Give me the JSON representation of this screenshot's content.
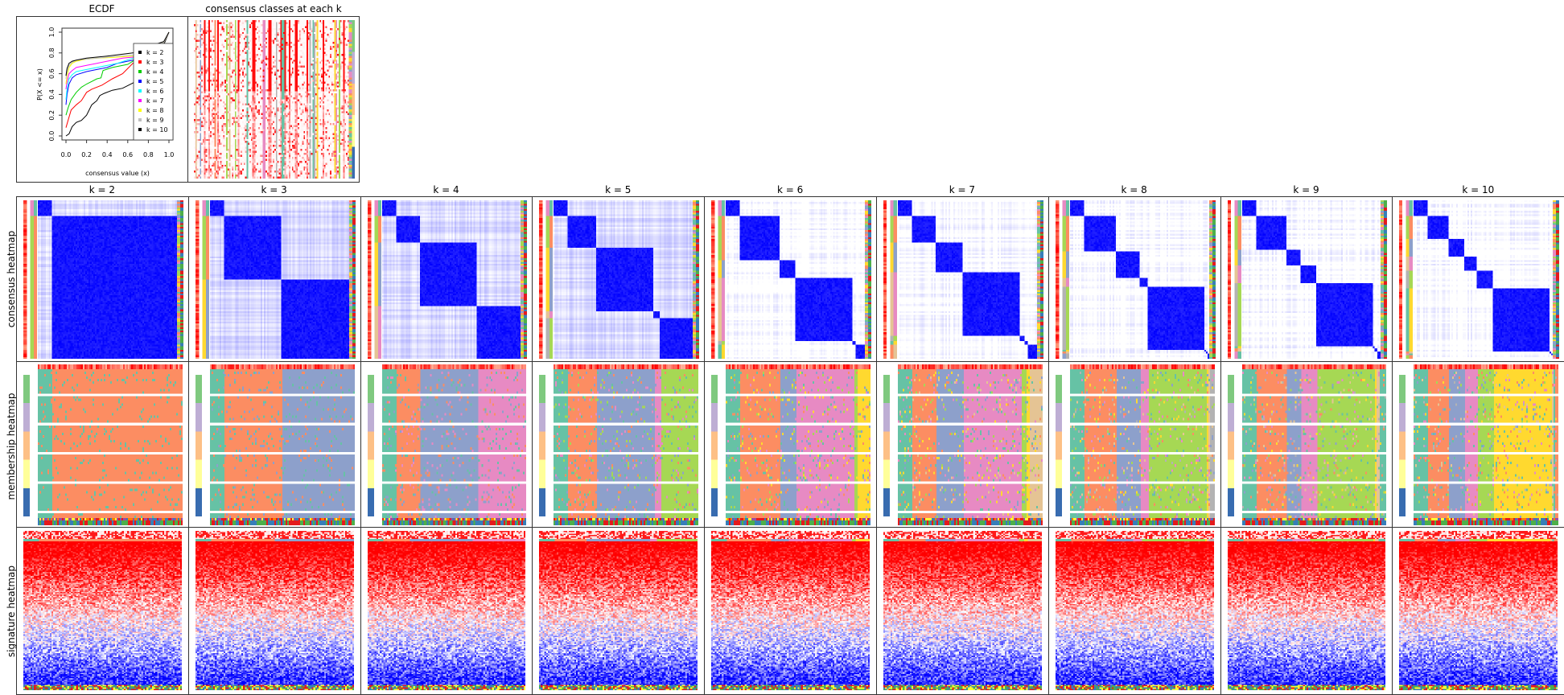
{
  "ecdf_panel": {
    "title": "ECDF"
  },
  "classes_panel": {
    "title": "consensus classes at each k"
  },
  "row_labels": [
    "consensus heatmap",
    "membership heatmap",
    "signature heatmap"
  ],
  "k_titles": [
    "k = 2",
    "k = 3",
    "k = 4",
    "k = 5",
    "k = 6",
    "k = 7",
    "k = 8",
    "k = 9",
    "k = 10"
  ],
  "colors": {
    "consensus_high": "#0000FF",
    "signature_high": "#FF0000",
    "signature_low": "#0000FF",
    "membership_classes": [
      "#66C2A5",
      "#FC8D62",
      "#8DA0CB",
      "#E78AC3",
      "#A6D854",
      "#FFD92F",
      "#E5C494",
      "#B3B3B3"
    ],
    "group_annotation": [
      "#7FC97F",
      "#BEAED4",
      "#FDC086",
      "#FFFF99",
      "#386CB0"
    ]
  },
  "chart_data": [
    {
      "type": "line",
      "title": "ECDF",
      "xlabel": "consensus value (x)",
      "ylabel": "P(X <= x)",
      "xlim": [
        0,
        1
      ],
      "ylim": [
        0,
        1
      ],
      "xticks": [
        "0.0",
        "0.2",
        "0.4",
        "0.6",
        "0.8",
        "1.0"
      ],
      "yticks": [
        "0.0",
        "0.2",
        "0.4",
        "0.6",
        "0.8",
        "1.0"
      ],
      "legend_position": "right",
      "series": [
        {
          "name": "k = 2",
          "color": "#000000",
          "x": [
            0,
            0.03,
            0.06,
            0.1,
            0.15,
            0.2,
            0.22,
            0.25,
            0.3,
            0.33,
            0.37,
            0.45,
            0.55,
            0.65,
            0.8,
            0.95,
            1
          ],
          "y": [
            0,
            0.02,
            0.09,
            0.13,
            0.15,
            0.2,
            0.24,
            0.3,
            0.34,
            0.39,
            0.41,
            0.44,
            0.46,
            0.51,
            0.6,
            0.88,
            1
          ]
        },
        {
          "name": "k = 3",
          "color": "#FF0000",
          "x": [
            0,
            0.02,
            0.05,
            0.1,
            0.15,
            0.2,
            0.25,
            0.35,
            0.45,
            0.55,
            0.6,
            0.65,
            0.8,
            0.95,
            1
          ],
          "y": [
            0.08,
            0.15,
            0.25,
            0.3,
            0.34,
            0.42,
            0.45,
            0.49,
            0.55,
            0.6,
            0.65,
            0.7,
            0.78,
            0.9,
            1
          ]
        },
        {
          "name": "k = 4",
          "color": "#00CD00",
          "x": [
            0,
            0.02,
            0.05,
            0.1,
            0.15,
            0.2,
            0.3,
            0.34,
            0.36,
            0.45,
            0.6,
            0.65,
            0.8,
            0.95,
            1
          ],
          "y": [
            0.2,
            0.27,
            0.35,
            0.42,
            0.47,
            0.5,
            0.55,
            0.56,
            0.63,
            0.66,
            0.69,
            0.72,
            0.8,
            0.9,
            1
          ]
        },
        {
          "name": "k = 5",
          "color": "#0000FF",
          "x": [
            0,
            0.01,
            0.03,
            0.06,
            0.1,
            0.2,
            0.3,
            0.4,
            0.5,
            0.65,
            0.8,
            0.95,
            1
          ],
          "y": [
            0.3,
            0.4,
            0.5,
            0.56,
            0.59,
            0.62,
            0.64,
            0.66,
            0.7,
            0.73,
            0.8,
            0.9,
            1
          ]
        },
        {
          "name": "k = 6",
          "color": "#00FFFF",
          "x": [
            0,
            0.01,
            0.03,
            0.06,
            0.1,
            0.2,
            0.35,
            0.5,
            0.65,
            0.8,
            0.95,
            1
          ],
          "y": [
            0.35,
            0.45,
            0.55,
            0.59,
            0.62,
            0.64,
            0.67,
            0.7,
            0.75,
            0.82,
            0.9,
            1
          ]
        },
        {
          "name": "k = 7",
          "color": "#FF00FF",
          "x": [
            0,
            0.01,
            0.03,
            0.06,
            0.1,
            0.2,
            0.3,
            0.4,
            0.55,
            0.65,
            0.8,
            0.95,
            1
          ],
          "y": [
            0.45,
            0.52,
            0.6,
            0.63,
            0.66,
            0.68,
            0.7,
            0.72,
            0.75,
            0.76,
            0.83,
            0.9,
            1
          ]
        },
        {
          "name": "k = 8",
          "color": "#FFFF00",
          "x": [
            0,
            0.01,
            0.03,
            0.06,
            0.1,
            0.2,
            0.3,
            0.5,
            0.65,
            0.8,
            0.95,
            1
          ],
          "y": [
            0.5,
            0.58,
            0.66,
            0.7,
            0.72,
            0.74,
            0.75,
            0.76,
            0.77,
            0.84,
            0.9,
            1
          ]
        },
        {
          "name": "k = 9",
          "color": "#BEBEBE",
          "x": [
            0,
            0.01,
            0.03,
            0.06,
            0.1,
            0.2,
            0.4,
            0.65,
            0.8,
            0.95,
            1
          ],
          "y": [
            0.55,
            0.62,
            0.68,
            0.71,
            0.73,
            0.74,
            0.76,
            0.78,
            0.85,
            0.9,
            1
          ]
        },
        {
          "name": "k = 10",
          "color": "#000000",
          "x": [
            0,
            0.01,
            0.03,
            0.06,
            0.1,
            0.2,
            0.4,
            0.65,
            0.8,
            0.95,
            1
          ],
          "y": [
            0.58,
            0.65,
            0.7,
            0.72,
            0.73,
            0.75,
            0.77,
            0.8,
            0.86,
            0.91,
            1
          ]
        }
      ]
    },
    {
      "type": "heatmap",
      "title": "consensus classes at each k",
      "k": [
        2,
        3,
        4,
        5,
        6,
        7,
        8,
        9,
        10
      ]
    },
    {
      "type": "heatmap",
      "row_label": "consensus heatmap",
      "panels": [
        "k = 2",
        "k = 3",
        "k = 4",
        "k = 5",
        "k = 6",
        "k = 7",
        "k = 8",
        "k = 9",
        "k = 10"
      ],
      "value_range": [
        0,
        1
      ]
    },
    {
      "type": "heatmap",
      "row_label": "membership heatmap",
      "panels": [
        "k = 2",
        "k = 3",
        "k = 4",
        "k = 5",
        "k = 6",
        "k = 7",
        "k = 8",
        "k = 9",
        "k = 10"
      ]
    },
    {
      "type": "heatmap",
      "row_label": "signature heatmap",
      "panels": [
        "k = 2",
        "k = 3",
        "k = 4",
        "k = 5",
        "k = 6",
        "k = 7",
        "k = 8",
        "k = 9",
        "k = 10"
      ]
    }
  ]
}
